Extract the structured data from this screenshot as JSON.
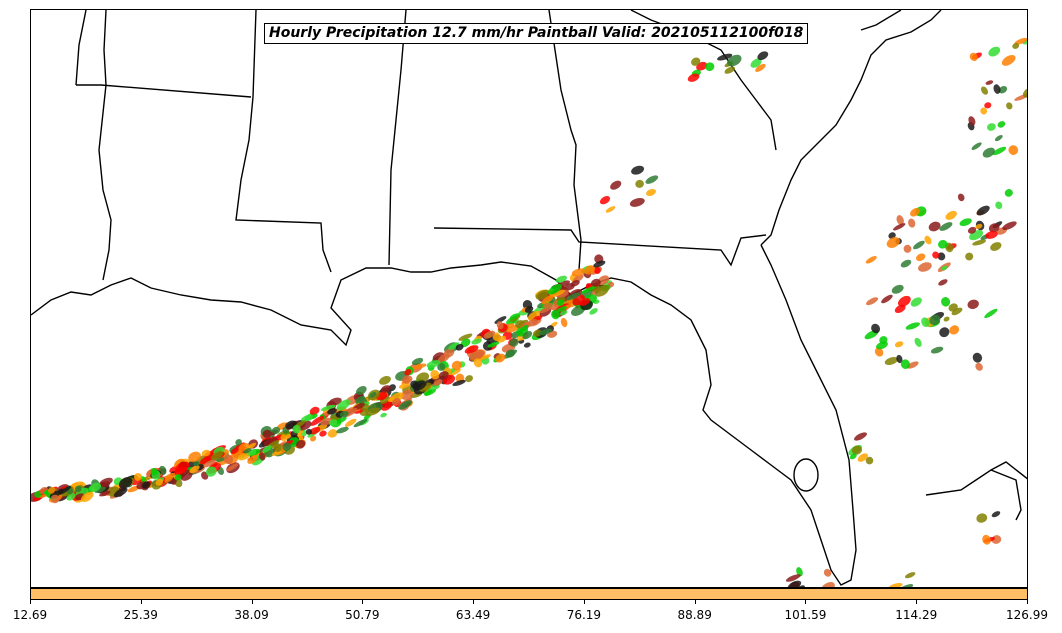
{
  "title": "Hourly Precipitation 12.7 mm/hr Paintball Valid: 202105112100f018",
  "colorbar": {
    "color": "#ffbf66",
    "ticks": [
      "12.69",
      "25.39",
      "38.09",
      "50.79",
      "63.49",
      "76.19",
      "88.89",
      "101.59",
      "114.29",
      "126.99"
    ]
  },
  "paintball_colors": [
    "#ff0000",
    "#ff7f00",
    "#ffa500",
    "#00cc00",
    "#33dd33",
    "#808000",
    "#1a1a1a",
    "#2e7d32",
    "#8b1a1a",
    "#dd6633"
  ]
}
